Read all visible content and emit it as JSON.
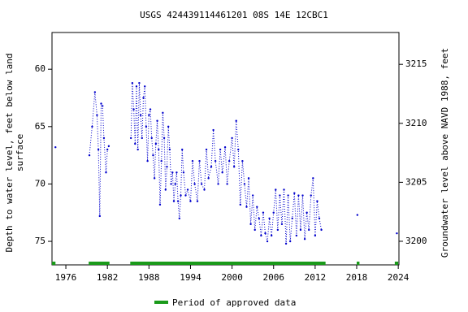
{
  "chart_data": {
    "type": "scatter-line",
    "title": "USGS 424439114461201 08S 14E 12CBC1",
    "ylabel_lines": [
      "Depth to water level, feet below land",
      "surface"
    ],
    "y2label": "Groundwater level above NAVD 1988, feet",
    "xlim": [
      1974,
      2024.1
    ],
    "xticks": [
      1976,
      1982,
      1988,
      1994,
      2000,
      2006,
      2012,
      2018,
      2024
    ],
    "ylim": [
      56.8,
      77.05
    ],
    "yticks": [
      60,
      65,
      70,
      75
    ],
    "y_inverted": true,
    "y2lim": [
      3198.0,
      3217.7
    ],
    "y2ticks": [
      3200,
      3205,
      3210,
      3215
    ],
    "series": [
      {
        "name": "Depth to water level",
        "color": "#0000cc",
        "x": [
          1974.5,
          null,
          1979.4,
          1979.8,
          1980.2,
          1980.5,
          1980.7,
          1980.9,
          1981.1,
          1981.3,
          1981.5,
          1981.8,
          1982.0,
          1982.2,
          null,
          1985.4,
          1985.6,
          1985.8,
          1986.0,
          1986.2,
          1986.4,
          1986.6,
          1986.8,
          1987.0,
          1987.2,
          1987.4,
          1987.6,
          1987.8,
          1988.0,
          1988.2,
          1988.4,
          1988.6,
          1988.8,
          1989.0,
          1989.2,
          1989.4,
          1989.6,
          1989.8,
          1990.0,
          1990.2,
          1990.4,
          1990.6,
          1990.8,
          1991.0,
          1991.2,
          1991.4,
          1991.6,
          1991.8,
          1992.0,
          1992.2,
          1992.4,
          1992.6,
          1992.8,
          1993.0,
          1993.3,
          1993.6,
          1994.0,
          1994.3,
          1994.6,
          1995.0,
          1995.3,
          1995.6,
          1996.0,
          1996.3,
          1996.6,
          1997.0,
          1997.3,
          1997.6,
          1998.0,
          1998.3,
          1998.6,
          1999.0,
          1999.3,
          1999.6,
          2000.0,
          2000.3,
          2000.6,
          2000.9,
          2001.2,
          2001.5,
          2001.8,
          2002.1,
          2002.4,
          2002.7,
          2003.0,
          2003.3,
          2003.6,
          2003.9,
          2004.2,
          2004.5,
          2004.8,
          2005.1,
          2005.4,
          2005.7,
          2006.0,
          2006.3,
          2006.6,
          2006.9,
          2007.2,
          2007.5,
          2007.8,
          2008.1,
          2008.4,
          2008.7,
          2009.0,
          2009.3,
          2009.6,
          2009.9,
          2010.2,
          2010.5,
          2010.8,
          2011.1,
          2011.4,
          2011.7,
          2012.0,
          2012.3,
          2012.6,
          2012.9,
          null,
          2018.1,
          null,
          2023.8
        ],
        "values": [
          66.8,
          null,
          67.5,
          65,
          62,
          64,
          67,
          72.8,
          63,
          63.2,
          66,
          69,
          67,
          66.7,
          null,
          66,
          61.2,
          63.5,
          66.5,
          61.5,
          67,
          61.2,
          64,
          66,
          62.5,
          61.5,
          65,
          68,
          64,
          63.5,
          66,
          67.5,
          69.5,
          66.5,
          64.5,
          67,
          71.8,
          68,
          63.8,
          66,
          70.5,
          68.5,
          65,
          67,
          70,
          69,
          71.5,
          70,
          69,
          71.5,
          73,
          71,
          67,
          69,
          71,
          70.5,
          71.5,
          68,
          70,
          71.5,
          68,
          70,
          70.5,
          67,
          69.5,
          68.5,
          65.3,
          68,
          70,
          67,
          69,
          66.8,
          70,
          68,
          66,
          68.5,
          64.5,
          67,
          71.8,
          68,
          70,
          72,
          69.5,
          73.5,
          71,
          74,
          72,
          73,
          74.5,
          72.5,
          74.3,
          75,
          73,
          74.5,
          72.5,
          70.5,
          74,
          71,
          73.5,
          70.5,
          75.2,
          71,
          75,
          73,
          70.8,
          74.5,
          71,
          74,
          71,
          74.8,
          72.5,
          74,
          71,
          69.5,
          74.5,
          71.5,
          73,
          74,
          null,
          72.7,
          null,
          74.3
        ]
      }
    ],
    "approved_periods": [
      [
        1974.0,
        1974.5
      ],
      [
        1979.3,
        1982.3
      ],
      [
        1985.3,
        2013.5
      ],
      [
        2018.0,
        2018.4
      ],
      [
        2023.5,
        2024.0
      ]
    ],
    "approved_color": "#1a9a1a",
    "legend": "Period of approved data"
  }
}
